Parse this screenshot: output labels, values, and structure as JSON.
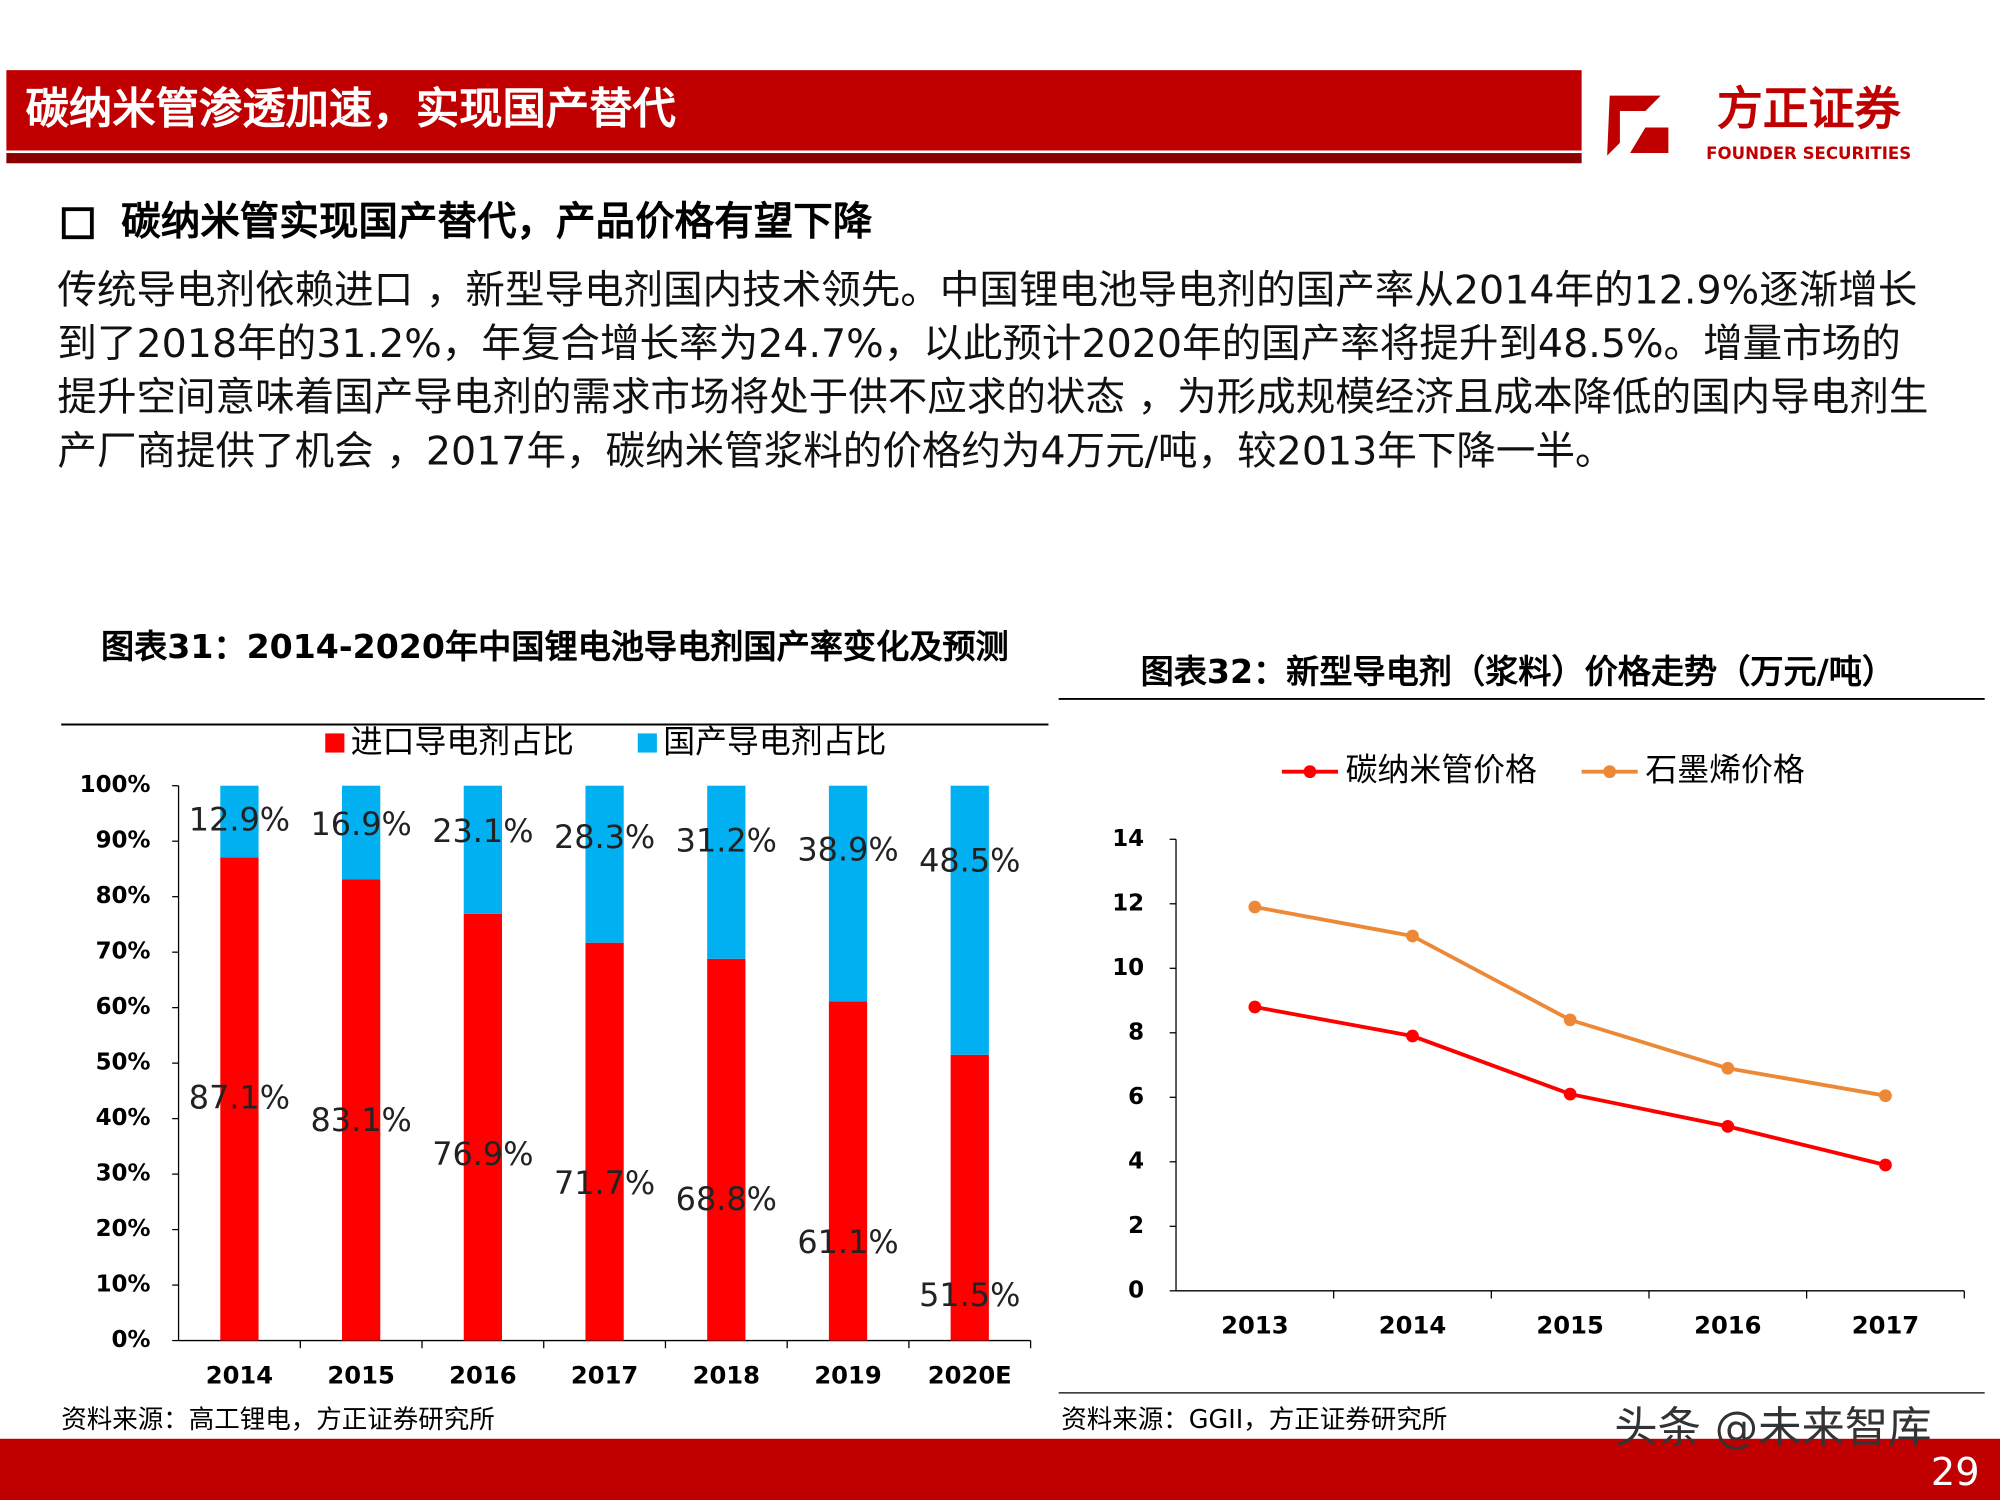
{
  "header": {
    "title": "碳纳米管渗透加速，实现国产替代",
    "logo": "方正证券",
    "logo_en": "FOUNDER SECURITIES"
  },
  "subheading": "碳纳米管实现国产替代，产品价格有望下降",
  "paragraph": "传统导电剂依赖进口 ，新型导电剂国内技术领先。中国锂电池导电剂的国产率从2014年的12.9%逐渐增长到了2018年的31.2%，年复合增长率为24.7%，以此预计2020年的国产率将提升到48.5%。增量市场的提升空间意味着国产导电剂的需求市场将处于供不应求的状态 ，为形成规模经济且成本降低的国内导电剂生产厂商提供了机会 ，2017年，碳纳米管浆料的价格约为4万元/吨，较2013年下降一半。",
  "chart_data": [
    {
      "type": "stacked_bar",
      "title": "图表31：2014-2020年中国锂电池导电剂国产率变化及预测",
      "categories": [
        "2014",
        "2015",
        "2016",
        "2017",
        "2018",
        "2019",
        "2020E"
      ],
      "series": [
        {
          "name": "进口导电剂占比",
          "color": "#ff0000",
          "values": [
            87.1,
            83.1,
            76.9,
            71.7,
            68.8,
            61.1,
            51.5
          ],
          "value_labels": [
            "87.1%",
            "83.1%",
            "76.9%",
            "71.7%",
            "68.8%",
            "61.1%",
            "51.5%"
          ]
        },
        {
          "name": "国产导电剂占比",
          "color": "#00b0f0",
          "values": [
            12.9,
            16.9,
            23.1,
            28.3,
            31.2,
            38.9,
            48.5
          ],
          "value_labels": [
            "12.9%",
            "16.9%",
            "23.1%",
            "28.3%",
            "31.2%",
            "38.9%",
            "48.5%"
          ]
        }
      ],
      "ylim": [
        0,
        100
      ],
      "yticks": [
        {
          "value": 0,
          "label": "0%"
        },
        {
          "value": 10,
          "label": "10%"
        },
        {
          "value": 20,
          "label": "20%"
        },
        {
          "value": 30,
          "label": "30%"
        },
        {
          "value": 40,
          "label": "40%"
        },
        {
          "value": 50,
          "label": "50%"
        },
        {
          "value": 60,
          "label": "60%"
        },
        {
          "value": 70,
          "label": "70%"
        },
        {
          "value": 80,
          "label": "80%"
        },
        {
          "value": 90,
          "label": "90%"
        },
        {
          "value": 100,
          "label": "100%"
        }
      ],
      "legend": "top",
      "source": "资料来源：高工锂电，方正证券研究所"
    },
    {
      "type": "line",
      "title": "图表32：新型导电剂（浆料）价格走势（万元/吨）",
      "categories": [
        "2013",
        "2014",
        "2015",
        "2016",
        "2017"
      ],
      "series": [
        {
          "name": "碳纳米管价格",
          "color": "#ff0000",
          "values": [
            8.8,
            7.9,
            6.1,
            5.1,
            3.9
          ]
        },
        {
          "name": "石墨烯价格",
          "color": "#ed8936",
          "values": [
            11.9,
            11.0,
            8.4,
            6.9,
            6.05
          ]
        }
      ],
      "ylim": [
        0,
        14
      ],
      "yticks": [
        0,
        2,
        4,
        6,
        8,
        10,
        12,
        14
      ],
      "legend": "top",
      "source": "资料来源：GGII，方正证券研究所"
    }
  ],
  "watermark": "头条 @未来智库",
  "page_number": "29"
}
